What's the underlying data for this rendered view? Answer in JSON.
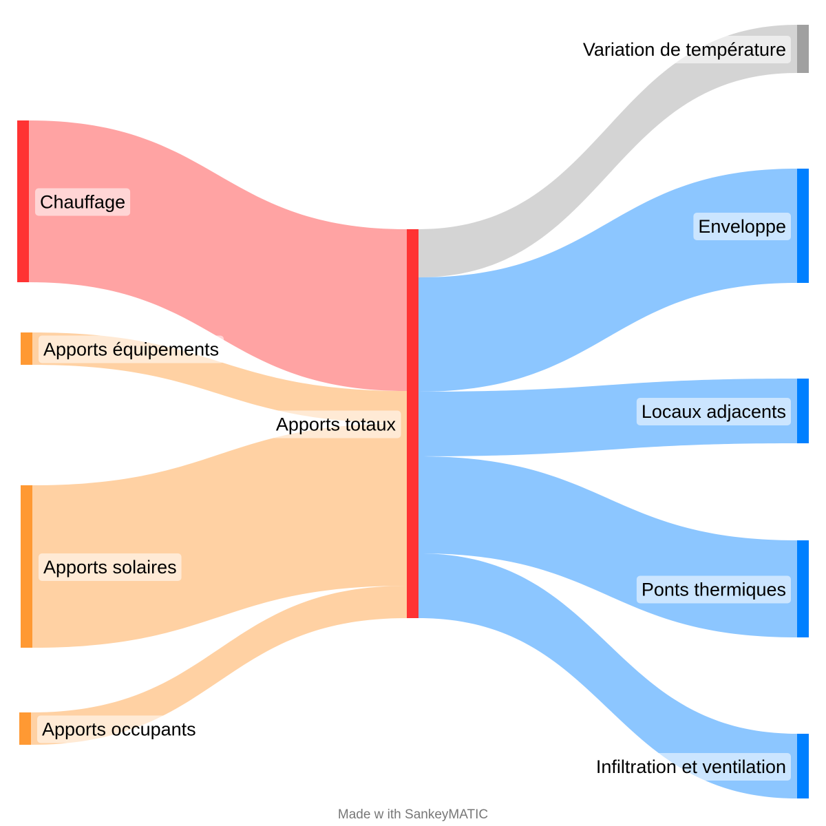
{
  "diagram": {
    "type": "sankey",
    "credit": "Made w ith SankeyMATIC",
    "nodes": [
      {
        "id": "chauffage",
        "label": "Chauffage",
        "color": "#ff3333"
      },
      {
        "id": "equipements",
        "label": "Apports équipements",
        "color": "#ff9933"
      },
      {
        "id": "solaires",
        "label": "Apports solaires",
        "color": "#ff9933"
      },
      {
        "id": "occupants",
        "label": "Apports occupants",
        "color": "#ff9933"
      },
      {
        "id": "totaux",
        "label": "Apports totaux",
        "color": "#ff3333"
      },
      {
        "id": "variation",
        "label": "Variation de température",
        "color": "#a0a0a0"
      },
      {
        "id": "enveloppe",
        "label": "Enveloppe",
        "color": "#0080ff"
      },
      {
        "id": "locaux",
        "label": "Locaux adjacents",
        "color": "#0080ff"
      },
      {
        "id": "ponts",
        "label": "Ponts thermiques",
        "color": "#0080ff"
      },
      {
        "id": "infiltration",
        "label": "Infiltration et ventilation",
        "color": "#0080ff"
      }
    ],
    "links": [
      {
        "source": "chauffage",
        "target": "totaux",
        "value": 235,
        "color": "#ff3333"
      },
      {
        "source": "equipements",
        "target": "totaux",
        "value": 47,
        "color": "#ff9933"
      },
      {
        "source": "solaires",
        "target": "totaux",
        "value": 236,
        "color": "#ff9933"
      },
      {
        "source": "occupants",
        "target": "totaux",
        "value": 47,
        "color": "#ff9933"
      },
      {
        "source": "totaux",
        "target": "variation",
        "value": 70,
        "color": "#a0a0a0"
      },
      {
        "source": "totaux",
        "target": "enveloppe",
        "value": 166,
        "color": "#0080ff"
      },
      {
        "source": "totaux",
        "target": "locaux",
        "value": 94,
        "color": "#0080ff"
      },
      {
        "source": "totaux",
        "target": "ponts",
        "value": 141,
        "color": "#0080ff"
      },
      {
        "source": "totaux",
        "target": "infiltration",
        "value": 94,
        "color": "#0080ff"
      }
    ]
  }
}
